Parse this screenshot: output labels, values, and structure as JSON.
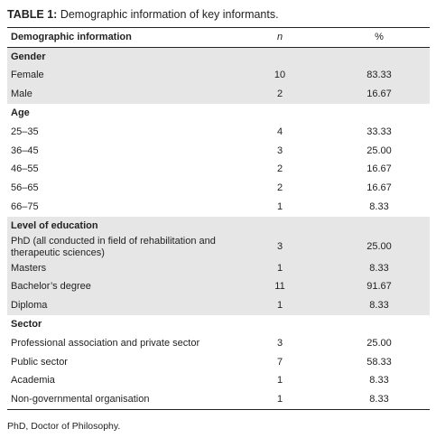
{
  "title": {
    "label": "TABLE 1:",
    "text": "Demographic information of key informants."
  },
  "table": {
    "columns": [
      "Demographic information",
      "n",
      "%"
    ],
    "sections": [
      {
        "heading": "Gender",
        "rows": [
          [
            "Female",
            "10",
            "83.33"
          ],
          [
            "Male",
            "2",
            "16.67"
          ]
        ]
      },
      {
        "heading": "Age",
        "rows": [
          [
            "25–35",
            "4",
            "33.33"
          ],
          [
            "36–45",
            "3",
            "25.00"
          ],
          [
            "46–55",
            "2",
            "16.67"
          ],
          [
            "56–65",
            "2",
            "16.67"
          ],
          [
            "66–75",
            "1",
            "8.33"
          ]
        ]
      },
      {
        "heading": "Level of education",
        "rows": [
          [
            "PhD (all conducted in field of rehabilitation and therapeutic sciences)",
            "3",
            "25.00"
          ],
          [
            "Masters",
            "1",
            "8.33"
          ],
          [
            "Bachelor’s degree",
            "11",
            "91.67"
          ],
          [
            "Diploma",
            "1",
            "8.33"
          ]
        ]
      },
      {
        "heading": "Sector",
        "rows": [
          [
            "Professional association and private sector",
            "3",
            "25.00"
          ],
          [
            "Public sector",
            "7",
            "58.33"
          ],
          [
            "Academia",
            "1",
            "8.33"
          ],
          [
            "Non-governmental organisation",
            "1",
            "8.33"
          ]
        ]
      }
    ]
  },
  "footnote": "PhD, Doctor of Philosophy."
}
